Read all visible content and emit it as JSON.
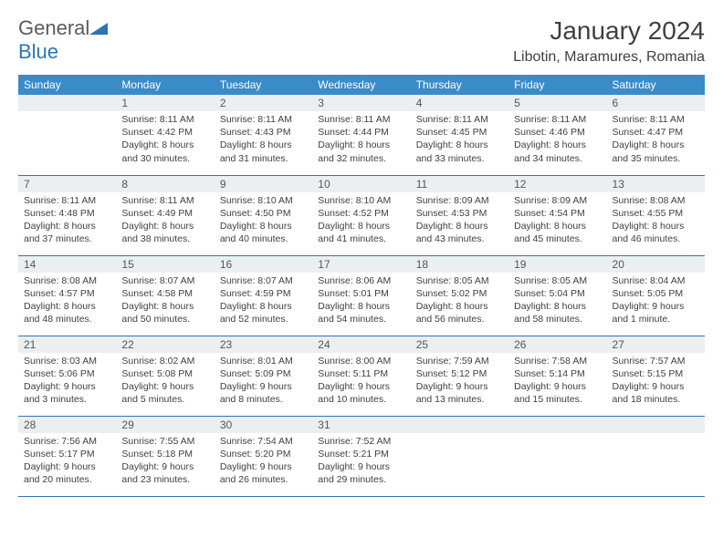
{
  "brand": {
    "general": "General",
    "blue": "Blue"
  },
  "header": {
    "month_year": "January 2024",
    "location": "Libotin, Maramures, Romania"
  },
  "colors": {
    "header_bar": "#3b8bc9",
    "row_divider": "#2e74b5",
    "daynum_bg": "#eceff1"
  },
  "weekdays": [
    "Sunday",
    "Monday",
    "Tuesday",
    "Wednesday",
    "Thursday",
    "Friday",
    "Saturday"
  ],
  "weeks": [
    [
      {
        "n": "",
        "sunrise": "",
        "sunset": "",
        "daylight1": "",
        "daylight2": ""
      },
      {
        "n": "1",
        "sunrise": "Sunrise: 8:11 AM",
        "sunset": "Sunset: 4:42 PM",
        "daylight1": "Daylight: 8 hours",
        "daylight2": "and 30 minutes."
      },
      {
        "n": "2",
        "sunrise": "Sunrise: 8:11 AM",
        "sunset": "Sunset: 4:43 PM",
        "daylight1": "Daylight: 8 hours",
        "daylight2": "and 31 minutes."
      },
      {
        "n": "3",
        "sunrise": "Sunrise: 8:11 AM",
        "sunset": "Sunset: 4:44 PM",
        "daylight1": "Daylight: 8 hours",
        "daylight2": "and 32 minutes."
      },
      {
        "n": "4",
        "sunrise": "Sunrise: 8:11 AM",
        "sunset": "Sunset: 4:45 PM",
        "daylight1": "Daylight: 8 hours",
        "daylight2": "and 33 minutes."
      },
      {
        "n": "5",
        "sunrise": "Sunrise: 8:11 AM",
        "sunset": "Sunset: 4:46 PM",
        "daylight1": "Daylight: 8 hours",
        "daylight2": "and 34 minutes."
      },
      {
        "n": "6",
        "sunrise": "Sunrise: 8:11 AM",
        "sunset": "Sunset: 4:47 PM",
        "daylight1": "Daylight: 8 hours",
        "daylight2": "and 35 minutes."
      }
    ],
    [
      {
        "n": "7",
        "sunrise": "Sunrise: 8:11 AM",
        "sunset": "Sunset: 4:48 PM",
        "daylight1": "Daylight: 8 hours",
        "daylight2": "and 37 minutes."
      },
      {
        "n": "8",
        "sunrise": "Sunrise: 8:11 AM",
        "sunset": "Sunset: 4:49 PM",
        "daylight1": "Daylight: 8 hours",
        "daylight2": "and 38 minutes."
      },
      {
        "n": "9",
        "sunrise": "Sunrise: 8:10 AM",
        "sunset": "Sunset: 4:50 PM",
        "daylight1": "Daylight: 8 hours",
        "daylight2": "and 40 minutes."
      },
      {
        "n": "10",
        "sunrise": "Sunrise: 8:10 AM",
        "sunset": "Sunset: 4:52 PM",
        "daylight1": "Daylight: 8 hours",
        "daylight2": "and 41 minutes."
      },
      {
        "n": "11",
        "sunrise": "Sunrise: 8:09 AM",
        "sunset": "Sunset: 4:53 PM",
        "daylight1": "Daylight: 8 hours",
        "daylight2": "and 43 minutes."
      },
      {
        "n": "12",
        "sunrise": "Sunrise: 8:09 AM",
        "sunset": "Sunset: 4:54 PM",
        "daylight1": "Daylight: 8 hours",
        "daylight2": "and 45 minutes."
      },
      {
        "n": "13",
        "sunrise": "Sunrise: 8:08 AM",
        "sunset": "Sunset: 4:55 PM",
        "daylight1": "Daylight: 8 hours",
        "daylight2": "and 46 minutes."
      }
    ],
    [
      {
        "n": "14",
        "sunrise": "Sunrise: 8:08 AM",
        "sunset": "Sunset: 4:57 PM",
        "daylight1": "Daylight: 8 hours",
        "daylight2": "and 48 minutes."
      },
      {
        "n": "15",
        "sunrise": "Sunrise: 8:07 AM",
        "sunset": "Sunset: 4:58 PM",
        "daylight1": "Daylight: 8 hours",
        "daylight2": "and 50 minutes."
      },
      {
        "n": "16",
        "sunrise": "Sunrise: 8:07 AM",
        "sunset": "Sunset: 4:59 PM",
        "daylight1": "Daylight: 8 hours",
        "daylight2": "and 52 minutes."
      },
      {
        "n": "17",
        "sunrise": "Sunrise: 8:06 AM",
        "sunset": "Sunset: 5:01 PM",
        "daylight1": "Daylight: 8 hours",
        "daylight2": "and 54 minutes."
      },
      {
        "n": "18",
        "sunrise": "Sunrise: 8:05 AM",
        "sunset": "Sunset: 5:02 PM",
        "daylight1": "Daylight: 8 hours",
        "daylight2": "and 56 minutes."
      },
      {
        "n": "19",
        "sunrise": "Sunrise: 8:05 AM",
        "sunset": "Sunset: 5:04 PM",
        "daylight1": "Daylight: 8 hours",
        "daylight2": "and 58 minutes."
      },
      {
        "n": "20",
        "sunrise": "Sunrise: 8:04 AM",
        "sunset": "Sunset: 5:05 PM",
        "daylight1": "Daylight: 9 hours",
        "daylight2": "and 1 minute."
      }
    ],
    [
      {
        "n": "21",
        "sunrise": "Sunrise: 8:03 AM",
        "sunset": "Sunset: 5:06 PM",
        "daylight1": "Daylight: 9 hours",
        "daylight2": "and 3 minutes."
      },
      {
        "n": "22",
        "sunrise": "Sunrise: 8:02 AM",
        "sunset": "Sunset: 5:08 PM",
        "daylight1": "Daylight: 9 hours",
        "daylight2": "and 5 minutes."
      },
      {
        "n": "23",
        "sunrise": "Sunrise: 8:01 AM",
        "sunset": "Sunset: 5:09 PM",
        "daylight1": "Daylight: 9 hours",
        "daylight2": "and 8 minutes."
      },
      {
        "n": "24",
        "sunrise": "Sunrise: 8:00 AM",
        "sunset": "Sunset: 5:11 PM",
        "daylight1": "Daylight: 9 hours",
        "daylight2": "and 10 minutes."
      },
      {
        "n": "25",
        "sunrise": "Sunrise: 7:59 AM",
        "sunset": "Sunset: 5:12 PM",
        "daylight1": "Daylight: 9 hours",
        "daylight2": "and 13 minutes."
      },
      {
        "n": "26",
        "sunrise": "Sunrise: 7:58 AM",
        "sunset": "Sunset: 5:14 PM",
        "daylight1": "Daylight: 9 hours",
        "daylight2": "and 15 minutes."
      },
      {
        "n": "27",
        "sunrise": "Sunrise: 7:57 AM",
        "sunset": "Sunset: 5:15 PM",
        "daylight1": "Daylight: 9 hours",
        "daylight2": "and 18 minutes."
      }
    ],
    [
      {
        "n": "28",
        "sunrise": "Sunrise: 7:56 AM",
        "sunset": "Sunset: 5:17 PM",
        "daylight1": "Daylight: 9 hours",
        "daylight2": "and 20 minutes."
      },
      {
        "n": "29",
        "sunrise": "Sunrise: 7:55 AM",
        "sunset": "Sunset: 5:18 PM",
        "daylight1": "Daylight: 9 hours",
        "daylight2": "and 23 minutes."
      },
      {
        "n": "30",
        "sunrise": "Sunrise: 7:54 AM",
        "sunset": "Sunset: 5:20 PM",
        "daylight1": "Daylight: 9 hours",
        "daylight2": "and 26 minutes."
      },
      {
        "n": "31",
        "sunrise": "Sunrise: 7:52 AM",
        "sunset": "Sunset: 5:21 PM",
        "daylight1": "Daylight: 9 hours",
        "daylight2": "and 29 minutes."
      },
      {
        "n": "",
        "sunrise": "",
        "sunset": "",
        "daylight1": "",
        "daylight2": ""
      },
      {
        "n": "",
        "sunrise": "",
        "sunset": "",
        "daylight1": "",
        "daylight2": ""
      },
      {
        "n": "",
        "sunrise": "",
        "sunset": "",
        "daylight1": "",
        "daylight2": ""
      }
    ]
  ]
}
